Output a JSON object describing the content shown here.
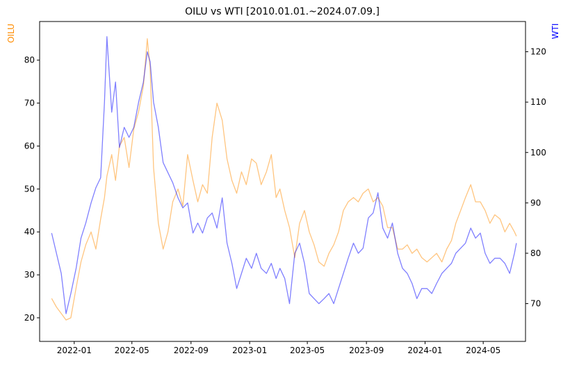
{
  "chart_data": {
    "type": "line",
    "title": "OILU vs WTI [2010.01.01.~2024.07.09.]",
    "xlabel": "",
    "x_ticks": [
      "2022-01",
      "2022-05",
      "2022-09",
      "2023-01",
      "2023-05",
      "2023-09",
      "2024-01",
      "2024-05"
    ],
    "grid": false,
    "left_axis": {
      "label": "OILU",
      "color": "#ff8c00",
      "ylim": [
        14.5,
        89
      ],
      "ticks": [
        20,
        30,
        40,
        50,
        60,
        70,
        80
      ]
    },
    "right_axis": {
      "label": "WTI",
      "color": "#0000ff",
      "ylim": [
        62.5,
        126
      ],
      "ticks": [
        70,
        80,
        90,
        100,
        110,
        120
      ]
    },
    "series": [
      {
        "name": "OILU",
        "axis": "left",
        "color": "#ff8c00",
        "opacity": 0.5,
        "x": [
          "2021-11-15",
          "2021-11-25",
          "2021-12-05",
          "2021-12-15",
          "2021-12-25",
          "2022-01-05",
          "2022-01-15",
          "2022-01-25",
          "2022-02-05",
          "2022-02-15",
          "2022-02-25",
          "2022-03-05",
          "2022-03-10",
          "2022-03-20",
          "2022-03-28",
          "2022-04-05",
          "2022-04-15",
          "2022-04-25",
          "2022-05-05",
          "2022-05-15",
          "2022-05-25",
          "2022-06-02",
          "2022-06-08",
          "2022-06-15",
          "2022-06-25",
          "2022-07-05",
          "2022-07-15",
          "2022-07-25",
          "2022-08-05",
          "2022-08-15",
          "2022-08-25",
          "2022-09-05",
          "2022-09-15",
          "2022-09-25",
          "2022-10-05",
          "2022-10-15",
          "2022-10-25",
          "2022-11-05",
          "2022-11-15",
          "2022-11-25",
          "2022-12-05",
          "2022-12-15",
          "2022-12-25",
          "2023-01-05",
          "2023-01-15",
          "2023-01-25",
          "2023-02-05",
          "2023-02-15",
          "2023-02-25",
          "2023-03-05",
          "2023-03-15",
          "2023-03-25",
          "2023-04-05",
          "2023-04-15",
          "2023-04-25",
          "2023-05-05",
          "2023-05-15",
          "2023-05-25",
          "2023-06-05",
          "2023-06-15",
          "2023-06-25",
          "2023-07-05",
          "2023-07-15",
          "2023-07-25",
          "2023-08-05",
          "2023-08-15",
          "2023-08-25",
          "2023-09-05",
          "2023-09-15",
          "2023-09-25",
          "2023-10-05",
          "2023-10-15",
          "2023-10-25",
          "2023-11-05",
          "2023-11-15",
          "2023-11-25",
          "2023-12-05",
          "2023-12-15",
          "2023-12-25",
          "2024-01-05",
          "2024-01-15",
          "2024-01-25",
          "2024-02-05",
          "2024-02-15",
          "2024-02-25",
          "2024-03-05",
          "2024-03-15",
          "2024-03-25",
          "2024-04-05",
          "2024-04-15",
          "2024-04-25",
          "2024-05-05",
          "2024-05-15",
          "2024-05-25",
          "2024-06-05",
          "2024-06-15",
          "2024-06-25",
          "2024-07-05",
          "2024-07-09"
        ],
        "values": [
          24.5,
          22.5,
          21,
          19.5,
          20,
          27,
          33,
          37,
          40,
          36,
          43,
          48,
          53,
          58,
          52,
          60,
          62,
          55,
          64,
          68,
          74,
          85,
          78,
          55,
          42,
          36,
          40,
          47,
          50,
          46,
          58,
          52,
          47,
          51,
          49,
          62,
          70,
          66,
          57,
          52,
          49,
          54,
          51,
          57,
          56,
          51,
          54,
          58,
          48,
          50,
          45,
          41,
          34,
          42,
          45,
          40,
          37,
          33,
          32,
          35,
          37,
          40,
          45,
          47,
          48,
          47,
          49,
          50,
          47,
          48,
          46,
          41,
          41,
          36,
          36,
          37,
          35,
          36,
          34,
          33,
          34,
          35,
          33,
          36,
          38,
          42,
          45,
          48,
          51,
          47,
          47,
          45,
          42,
          44,
          43,
          40,
          42,
          40,
          39
        ]
      },
      {
        "name": "WTI",
        "axis": "right",
        "color": "#0000ff",
        "opacity": 0.5,
        "x": [
          "2021-11-15",
          "2021-11-25",
          "2021-12-05",
          "2021-12-15",
          "2021-12-25",
          "2022-01-05",
          "2022-01-15",
          "2022-01-25",
          "2022-02-05",
          "2022-02-15",
          "2022-02-25",
          "2022-03-05",
          "2022-03-10",
          "2022-03-20",
          "2022-03-28",
          "2022-04-05",
          "2022-04-15",
          "2022-04-25",
          "2022-05-05",
          "2022-05-15",
          "2022-05-25",
          "2022-06-02",
          "2022-06-08",
          "2022-06-15",
          "2022-06-25",
          "2022-07-05",
          "2022-07-15",
          "2022-07-25",
          "2022-08-05",
          "2022-08-15",
          "2022-08-25",
          "2022-09-05",
          "2022-09-15",
          "2022-09-25",
          "2022-10-05",
          "2022-10-15",
          "2022-10-25",
          "2022-11-05",
          "2022-11-15",
          "2022-11-25",
          "2022-12-05",
          "2022-12-15",
          "2022-12-25",
          "2023-01-05",
          "2023-01-15",
          "2023-01-25",
          "2023-02-05",
          "2023-02-15",
          "2023-02-25",
          "2023-03-05",
          "2023-03-15",
          "2023-03-25",
          "2023-04-05",
          "2023-04-15",
          "2023-04-25",
          "2023-05-05",
          "2023-05-15",
          "2023-05-25",
          "2023-06-05",
          "2023-06-15",
          "2023-06-25",
          "2023-07-05",
          "2023-07-15",
          "2023-07-25",
          "2023-08-05",
          "2023-08-15",
          "2023-08-25",
          "2023-09-05",
          "2023-09-15",
          "2023-09-25",
          "2023-10-05",
          "2023-10-15",
          "2023-10-25",
          "2023-11-05",
          "2023-11-15",
          "2023-11-25",
          "2023-12-05",
          "2023-12-15",
          "2023-12-25",
          "2024-01-05",
          "2024-01-15",
          "2024-01-25",
          "2024-02-05",
          "2024-02-15",
          "2024-02-25",
          "2024-03-05",
          "2024-03-15",
          "2024-03-25",
          "2024-04-05",
          "2024-04-15",
          "2024-04-25",
          "2024-05-05",
          "2024-05-15",
          "2024-05-25",
          "2024-06-05",
          "2024-06-15",
          "2024-06-25",
          "2024-07-05",
          "2024-07-09"
        ],
        "values": [
          84,
          80,
          76,
          68,
          72,
          77,
          83,
          86,
          90,
          93,
          95,
          110,
          123,
          108,
          114,
          101,
          105,
          103,
          105,
          110,
          114,
          120,
          118,
          110,
          105,
          98,
          96,
          94,
          91,
          89,
          90,
          84,
          86,
          84,
          87,
          88,
          85,
          91,
          82,
          78,
          73,
          76,
          79,
          77,
          80,
          77,
          76,
          78,
          75,
          77,
          75,
          70,
          80,
          82,
          78,
          72,
          71,
          70,
          71,
          72,
          70,
          73,
          76,
          79,
          82,
          80,
          81,
          87,
          88,
          92,
          85,
          83,
          86,
          80,
          77,
          76,
          74,
          71,
          73,
          73,
          72,
          74,
          76,
          77,
          78,
          80,
          81,
          82,
          85,
          83,
          84,
          80,
          78,
          79,
          79,
          78,
          76,
          80,
          82
        ]
      }
    ]
  }
}
